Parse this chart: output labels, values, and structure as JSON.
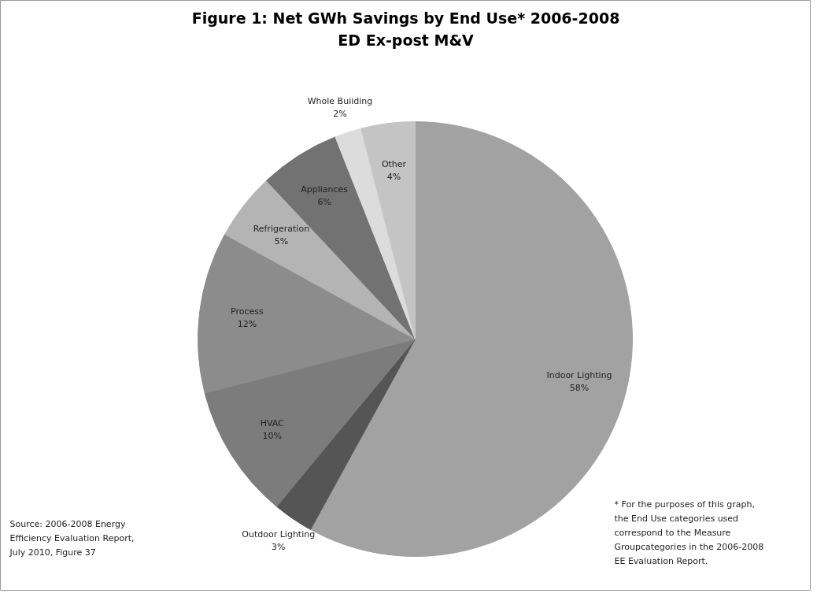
{
  "chart_data": {
    "type": "pie",
    "title": "Figure 1: Net GWh Savings by End Use* 2006-2008",
    "subtitle": "ED Ex-post M&V",
    "categories": [
      "Indoor Lighting",
      "Outdoor Lighting",
      "HVAC",
      "Process",
      "Refrigeration",
      "Appliances",
      "Whole Buiiding",
      "Other"
    ],
    "values": [
      58,
      3,
      10,
      12,
      5,
      6,
      2,
      4
    ],
    "colors": [
      "#a2a2a2",
      "#555555",
      "#7c7c7c",
      "#8c8c8c",
      "#b4b4b4",
      "#727272",
      "#dcdcdc",
      "#c4c4c4"
    ],
    "annotations": [
      "Source: 2006-2008 Energy Efficiency Evaluation Report, July 2010, Figure 37",
      "* For the purposes of this graph, the End Use categories used correspond to the Measure Groupcategories in the 2006-2008 EE Evaluation Report."
    ],
    "value_labels": [
      "58%",
      "3%",
      "10%",
      "12%",
      "5%",
      "6%",
      "2%",
      "4%"
    ]
  }
}
